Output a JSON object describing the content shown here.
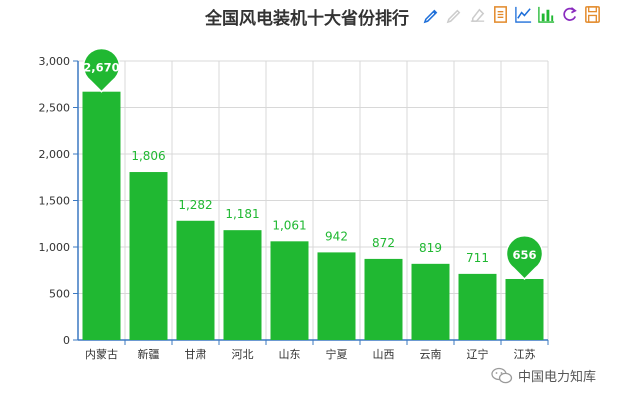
{
  "title": "全国风电装机十大省份排行",
  "toolbox": {
    "icons": [
      "mark-pen-icon",
      "mark-undo-icon",
      "mark-clear-icon",
      "data-view-icon",
      "line-chart-icon",
      "bar-chart-icon",
      "restore-icon",
      "save-image-icon"
    ],
    "colors": {
      "active": "#1e6fd9",
      "muted": "#cccccc",
      "orange": "#e38b2c",
      "purple": "#8a2bbf"
    }
  },
  "watermark": {
    "text": "中国电力知库",
    "icon": "wechat-icon"
  },
  "chart_data": {
    "type": "bar",
    "categories": [
      "内蒙古",
      "新疆",
      "甘肃",
      "河北",
      "山东",
      "宁夏",
      "山西",
      "云南",
      "辽宁",
      "江苏"
    ],
    "values": [
      2670,
      1806,
      1282,
      1181,
      1061,
      942,
      872,
      819,
      711,
      656
    ],
    "value_labels": [
      "2,670",
      "1,806",
      "1,282",
      "1,181",
      "1,061",
      "942",
      "872",
      "819",
      "711",
      "656"
    ],
    "max_marker_label": "2,670",
    "min_marker_label": "656",
    "y_ticks": [
      0,
      500,
      1000,
      1500,
      2000,
      2500,
      3000
    ],
    "y_tick_labels": [
      "0",
      "500",
      "1,000",
      "1,500",
      "2,000",
      "2,500",
      "3,000"
    ],
    "ylim": [
      0,
      3000
    ],
    "grid": true,
    "bar_color": "#20b832",
    "label_color": "#20b832",
    "axis_color": "#3b78c2"
  }
}
